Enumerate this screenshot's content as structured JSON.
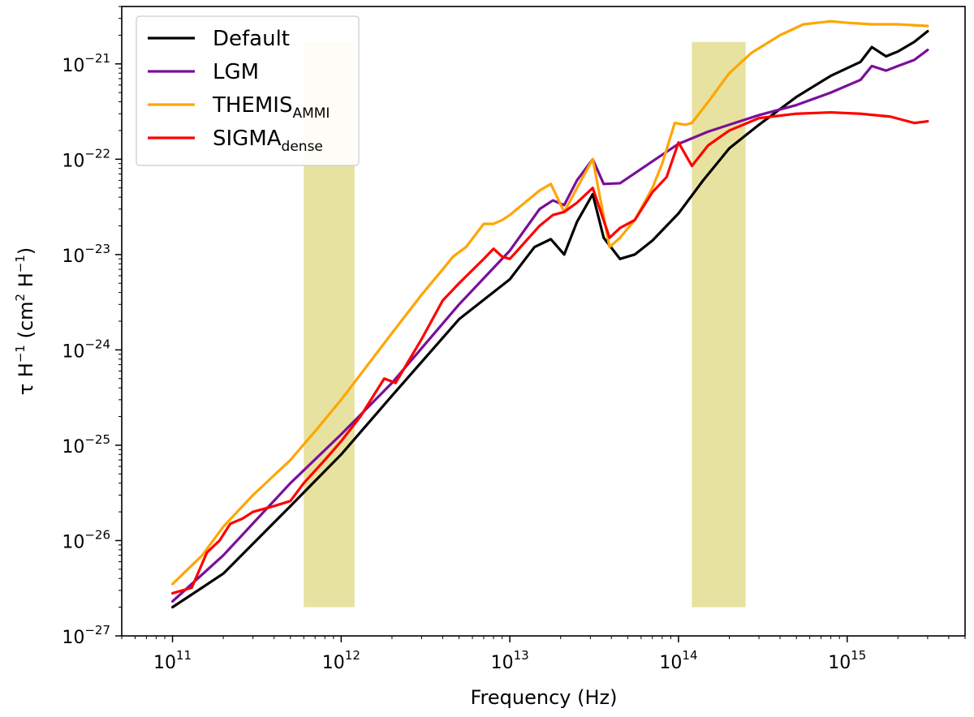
{
  "chart_data": {
    "type": "line",
    "xscale": "log",
    "yscale": "log",
    "xlim": [
      50000000000.0,
      5000000000000000.0
    ],
    "ylim": [
      1e-27,
      4e-21
    ],
    "xlabel": {
      "text": "Frequency (Hz)"
    },
    "ylabel": {
      "tau": "τ",
      "h": "H",
      "exp1": "−1",
      "unit_open": " (cm",
      "exp2": "2",
      "unit_mid": " H",
      "exp3": "−1",
      "unit_close": ")"
    },
    "x_ticks": [
      {
        "base": "10",
        "exp": "11",
        "value": 100000000000.0
      },
      {
        "base": "10",
        "exp": "12",
        "value": 1000000000000.0
      },
      {
        "base": "10",
        "exp": "13",
        "value": 10000000000000.0
      },
      {
        "base": "10",
        "exp": "14",
        "value": 100000000000000.0
      },
      {
        "base": "10",
        "exp": "15",
        "value": 1000000000000000.0
      }
    ],
    "y_ticks": [
      {
        "base": "10",
        "exp": "−27",
        "value": 1e-27
      },
      {
        "base": "10",
        "exp": "−26",
        "value": 1e-26
      },
      {
        "base": "10",
        "exp": "−25",
        "value": 1e-25
      },
      {
        "base": "10",
        "exp": "−24",
        "value": 1e-24
      },
      {
        "base": "10",
        "exp": "−23",
        "value": 1e-23
      },
      {
        "base": "10",
        "exp": "−22",
        "value": 1e-22
      },
      {
        "base": "10",
        "exp": "−21",
        "value": 1e-21
      }
    ],
    "shaded_bands": [
      {
        "x_from": 600000000000.0,
        "x_to": 1200000000000.0,
        "y_from": 2e-27,
        "y_to": 1.7e-21,
        "color": "#e8e2a0"
      },
      {
        "x_from": 120000000000000.0,
        "x_to": 250000000000000.0,
        "y_from": 2e-27,
        "y_to": 1.7e-21,
        "color": "#e8e2a0"
      }
    ],
    "legend_position": "top-left",
    "series": [
      {
        "name": "Default",
        "name_sub": "",
        "color": "#000000",
        "x": [
          100000000000.0,
          200000000000.0,
          500000000000.0,
          1000000000000.0,
          2000000000000.0,
          5000000000000.0,
          10000000000000.0,
          14000000000000.0,
          17500000000000.0,
          21000000000000.0,
          25000000000000.0,
          31000000000000.0,
          36000000000000.0,
          45000000000000.0,
          55000000000000.0,
          70000000000000.0,
          100000000000000.0,
          140000000000000.0,
          200000000000000.0,
          300000000000000.0,
          500000000000000.0,
          800000000000000.0,
          1200000000000000.0,
          1400000000000000.0,
          1700000000000000.0,
          2000000000000000.0,
          2500000000000000.0,
          3000000000000000.0
        ],
        "values": [
          2e-27,
          4.5e-27,
          2.3e-26,
          8e-26,
          3.3e-25,
          2.1e-24,
          5.5e-24,
          1.2e-23,
          1.45e-23,
          1e-23,
          2.2e-23,
          4.3e-23,
          1.5e-23,
          9e-24,
          1e-23,
          1.4e-23,
          2.7e-23,
          6e-23,
          1.3e-22,
          2.3e-22,
          4.5e-22,
          7.5e-22,
          1.05e-21,
          1.5e-21,
          1.2e-21,
          1.35e-21,
          1.7e-21,
          2.2e-21
        ]
      },
      {
        "name": "LGM",
        "name_sub": "",
        "color": "#7a0f9a",
        "x": [
          100000000000.0,
          200000000000.0,
          500000000000.0,
          1000000000000.0,
          2000000000000.0,
          5000000000000.0,
          10000000000000.0,
          15000000000000.0,
          18000000000000.0,
          21000000000000.0,
          25000000000000.0,
          31000000000000.0,
          36000000000000.0,
          45000000000000.0,
          70000000000000.0,
          100000000000000.0,
          150000000000000.0,
          200000000000000.0,
          300000000000000.0,
          500000000000000.0,
          800000000000000.0,
          1200000000000000.0,
          1400000000000000.0,
          1700000000000000.0,
          2000000000000000.0,
          2500000000000000.0,
          3000000000000000.0
        ],
        "values": [
          2.3e-27,
          7e-27,
          4e-26,
          1.3e-25,
          4.5e-25,
          3e-24,
          1.1e-23,
          3e-23,
          3.7e-23,
          3.3e-23,
          6e-23,
          1e-22,
          5.5e-23,
          5.6e-23,
          9.5e-23,
          1.45e-22,
          1.95e-22,
          2.3e-22,
          2.9e-22,
          3.7e-22,
          5e-22,
          6.8e-22,
          9.5e-22,
          8.5e-22,
          9.5e-22,
          1.1e-21,
          1.4e-21
        ]
      },
      {
        "name": "THEMIS",
        "name_sub": "AMMI",
        "color": "#ffa500",
        "x": [
          100000000000.0,
          150000000000.0,
          200000000000.0,
          300000000000.0,
          500000000000.0,
          700000000000.0,
          1000000000000.0,
          2000000000000.0,
          3000000000000.0,
          4000000000000.0,
          4600000000000.0,
          5500000000000.0,
          7000000000000.0,
          8000000000000.0,
          9000000000000.0,
          10000000000000.0,
          15000000000000.0,
          17500000000000.0,
          21000000000000.0,
          25000000000000.0,
          31000000000000.0,
          39000000000000.0,
          45000000000000.0,
          55000000000000.0,
          70000000000000.0,
          80000000000000.0,
          95000000000000.0,
          110000000000000.0,
          120000000000000.0,
          150000000000000.0,
          200000000000000.0,
          270000000000000.0,
          400000000000000.0,
          550000000000000.0,
          800000000000000.0,
          1000000000000000.0,
          1400000000000000.0,
          2000000000000000.0,
          3000000000000000.0
        ],
        "values": [
          3.5e-27,
          7e-27,
          1.4e-26,
          3e-26,
          7e-26,
          1.4e-25,
          3e-25,
          1.5e-24,
          3.8e-24,
          7e-24,
          9.5e-24,
          1.2e-23,
          2.1e-23,
          2.1e-23,
          2.3e-23,
          2.6e-23,
          4.7e-23,
          5.5e-23,
          2.8e-23,
          5e-23,
          1e-22,
          1.2e-23,
          1.5e-23,
          2.3e-23,
          5e-23,
          9e-23,
          2.4e-22,
          2.3e-22,
          2.4e-22,
          4e-22,
          8e-22,
          1.3e-21,
          2e-21,
          2.6e-21,
          2.8e-21,
          2.7e-21,
          2.6e-21,
          2.6e-21,
          2.5e-21
        ]
      },
      {
        "name": "SIGMA",
        "name_sub": "dense",
        "color": "#ff0000",
        "x": [
          100000000000.0,
          130000000000.0,
          160000000000.0,
          190000000000.0,
          220000000000.0,
          260000000000.0,
          300000000000.0,
          400000000000.0,
          500000000000.0,
          600000000000.0,
          800000000000.0,
          1000000000000.0,
          1300000000000.0,
          1800000000000.0,
          2100000000000.0,
          3000000000000.0,
          4000000000000.0,
          5000000000000.0,
          7000000000000.0,
          8000000000000.0,
          9000000000000.0,
          10000000000000.0,
          15000000000000.0,
          18000000000000.0,
          21000000000000.0,
          25000000000000.0,
          31000000000000.0,
          39000000000000.0,
          45000000000000.0,
          55000000000000.0,
          70000000000000.0,
          85000000000000.0,
          100000000000000.0,
          120000000000000.0,
          150000000000000.0,
          200000000000000.0,
          300000000000000.0,
          500000000000000.0,
          800000000000000.0,
          1200000000000000.0,
          1800000000000000.0,
          2500000000000000.0,
          3000000000000000.0
        ],
        "values": [
          2.8e-27,
          3.2e-27,
          7.5e-27,
          1e-26,
          1.5e-26,
          1.7e-26,
          2e-26,
          2.3e-26,
          2.6e-26,
          4e-26,
          7e-26,
          1.1e-25,
          2e-25,
          5e-25,
          4.5e-25,
          1.3e-24,
          3.3e-24,
          5e-24,
          9e-24,
          1.15e-23,
          9.5e-24,
          9e-24,
          2e-23,
          2.6e-23,
          2.8e-23,
          3.5e-23,
          5e-23,
          1.5e-23,
          1.9e-23,
          2.3e-23,
          4.5e-23,
          6.5e-23,
          1.5e-22,
          8.5e-23,
          1.4e-22,
          2e-22,
          2.7e-22,
          3e-22,
          3.1e-22,
          3e-22,
          2.8e-22,
          2.4e-22,
          2.5e-22
        ]
      }
    ]
  }
}
